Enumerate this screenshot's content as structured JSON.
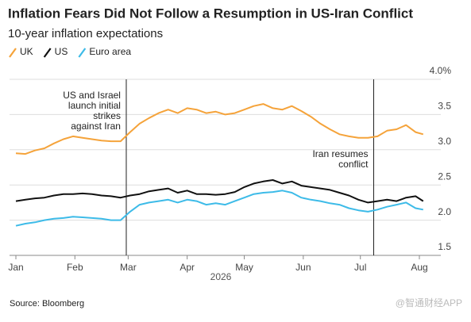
{
  "chart_data": {
    "type": "line",
    "title": "Inflation Fears Did Not Follow a Resumption in US-Iran Conflict",
    "subtitle": "10-year inflation expectations",
    "xlabel": "2026",
    "source": "Source: Bloomberg",
    "watermark": "@智通财经APP",
    "x": [
      0,
      5,
      10,
      15,
      20,
      25,
      30,
      35,
      40,
      45,
      50,
      55,
      60,
      65,
      70,
      75,
      80,
      85,
      90,
      95,
      100,
      105,
      110,
      115,
      120,
      125,
      130,
      135,
      140,
      145,
      150,
      155,
      160,
      165,
      170,
      175,
      180,
      185,
      190,
      195,
      200,
      205,
      210,
      214
    ],
    "series": [
      {
        "name": "UK",
        "color": "#f5a33a",
        "values": [
          2.95,
          2.94,
          2.99,
          3.02,
          3.09,
          3.15,
          3.19,
          3.17,
          3.15,
          3.13,
          3.12,
          3.12,
          3.25,
          3.37,
          3.45,
          3.52,
          3.57,
          3.52,
          3.59,
          3.57,
          3.52,
          3.54,
          3.5,
          3.52,
          3.57,
          3.62,
          3.65,
          3.59,
          3.57,
          3.62,
          3.55,
          3.47,
          3.37,
          3.29,
          3.22,
          3.19,
          3.17,
          3.17,
          3.19,
          3.27,
          3.29,
          3.35,
          3.25,
          3.22
        ]
      },
      {
        "name": "US",
        "color": "#111111",
        "values": [
          2.27,
          2.29,
          2.31,
          2.32,
          2.35,
          2.37,
          2.37,
          2.38,
          2.37,
          2.35,
          2.34,
          2.32,
          2.35,
          2.37,
          2.41,
          2.43,
          2.45,
          2.39,
          2.42,
          2.37,
          2.37,
          2.36,
          2.37,
          2.4,
          2.47,
          2.52,
          2.55,
          2.57,
          2.52,
          2.55,
          2.49,
          2.47,
          2.45,
          2.43,
          2.39,
          2.35,
          2.29,
          2.25,
          2.27,
          2.29,
          2.27,
          2.32,
          2.34,
          2.27
        ]
      },
      {
        "name": "Euro area",
        "color": "#3dbbe8",
        "values": [
          1.92,
          1.95,
          1.97,
          2.0,
          2.02,
          2.03,
          2.05,
          2.04,
          2.03,
          2.02,
          2.0,
          2.0,
          2.12,
          2.22,
          2.25,
          2.27,
          2.29,
          2.25,
          2.29,
          2.27,
          2.22,
          2.24,
          2.22,
          2.27,
          2.32,
          2.37,
          2.39,
          2.4,
          2.42,
          2.39,
          2.32,
          2.29,
          2.27,
          2.24,
          2.22,
          2.17,
          2.14,
          2.12,
          2.15,
          2.19,
          2.22,
          2.25,
          2.17,
          2.15
        ]
      }
    ],
    "xlim": [
      -1,
      215
    ],
    "xticks": [
      {
        "value": 0,
        "label": "Jan"
      },
      {
        "value": 31,
        "label": "Feb"
      },
      {
        "value": 59,
        "label": "Mar"
      },
      {
        "value": 90,
        "label": "Apr"
      },
      {
        "value": 120,
        "label": "May"
      },
      {
        "value": 151,
        "label": "Jun"
      },
      {
        "value": 181,
        "label": "Jul"
      },
      {
        "value": 212,
        "label": "Aug"
      }
    ],
    "ylim": [
      1.5,
      4.0
    ],
    "yticks": [
      1.5,
      {
        "value": 2,
        "label": "2.0"
      },
      2.5,
      {
        "value": 3,
        "label": "3.0"
      },
      3.5,
      {
        "value": 4,
        "label": "4.0%"
      }
    ],
    "grid": true,
    "annotations": [
      {
        "x": 58,
        "text": [
          "US and Israel",
          "launch initial",
          "strikes",
          "against Iran"
        ]
      },
      {
        "x": 188,
        "text": [
          "Iran resumes",
          "conflict"
        ]
      }
    ]
  }
}
